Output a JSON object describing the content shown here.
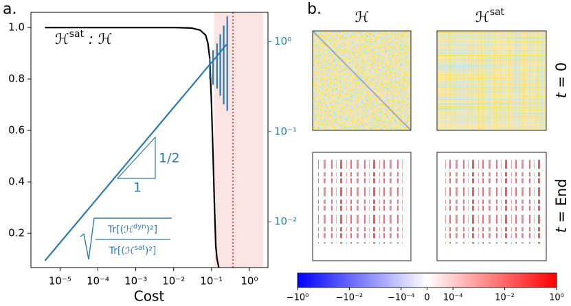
{
  "chart_data": [
    {
      "type": "line",
      "panel_label": "a.",
      "xlabel": "Cost",
      "xscale": "log",
      "xlim": [
        1.7e-06,
        3.1
      ],
      "xticks": [
        {
          "value": 1e-05,
          "label": "10⁻⁵"
        },
        {
          "value": 0.0001,
          "label": "10⁻⁴"
        },
        {
          "value": 0.001,
          "label": "10⁻³"
        },
        {
          "value": 0.01,
          "label": "10⁻²"
        },
        {
          "value": 0.1,
          "label": "10⁻¹"
        },
        {
          "value": 1,
          "label": "10⁰"
        }
      ],
      "ylim": [
        0.067,
        1.059
      ],
      "yticks": [
        0.2,
        0.4,
        0.6,
        0.8,
        {
          "value": 1,
          "label": "1.0"
        }
      ],
      "y2scale": "log",
      "y2lim": [
        0.0031,
        2.1
      ],
      "y2color": "#2a7ab0",
      "y2ticks": [
        {
          "value": 0.01,
          "label": "10⁻²"
        },
        {
          "value": 0.1,
          "label": "10⁻¹"
        },
        {
          "value": 1,
          "label": "10⁰"
        }
      ],
      "shade": [
        0.118,
        2.3
      ],
      "shade_color": "#f9e3e3",
      "vline": 0.37,
      "vline_color": "#e0474c",
      "series": [
        {
          "color": "#000000",
          "x": [
            4e-06,
            0.0001,
            0.001,
            0.01,
            0.03,
            0.05,
            0.07,
            0.08,
            0.09,
            0.1,
            0.11,
            0.12,
            0.13,
            0.14,
            0.16
          ],
          "values": [
            1,
            1,
            1,
            1,
            0.998,
            0.99,
            0.97,
            0.94,
            0.88,
            0.7,
            0.5,
            0.3,
            0.15,
            0.1,
            0.06
          ]
        },
        {
          "color": "#2a7ab0",
          "axis": "y2",
          "x": [
            4e-06,
            1e-05,
            0.0001,
            0.001,
            0.01,
            0.03,
            0.09,
            0.11,
            0.14,
            0.17,
            0.21,
            0.26
          ],
          "values": [
            0.0037,
            0.00585,
            0.0185,
            0.0585,
            0.185,
            0.32,
            0.555,
            0.61,
            0.69,
            0.76,
            0.85,
            0.94
          ],
          "lower": [
            null,
            null,
            null,
            null,
            null,
            null,
            0.38,
            0.33,
            0.3,
            0.25,
            0.2,
            0.17
          ],
          "upper": [
            null,
            null,
            null,
            null,
            null,
            null,
            0.65,
            0.8,
            0.95,
            1.2,
            1.5,
            1.9
          ]
        }
      ],
      "ratio_label": {
        "base": "ℋ",
        "sup": "sat",
        "rest": " : ℋ"
      },
      "slope": {
        "rise": "1/2",
        "run": "1"
      },
      "formula": {
        "num_a": "Tr[(ℋ",
        "num_sup": "dyn",
        "num_b": ")²]",
        "den_a": "Tr[(ℋ",
        "den_sup": "sat",
        "den_b": ")²]"
      }
    }
  ],
  "heatmaps": {
    "panel_label": "b.",
    "columns": [
      {
        "text": "ℋ"
      },
      {
        "text": "ℋ",
        "sup": "sat"
      }
    ],
    "rows": [
      {
        "var": "t",
        "rest": " = 0"
      },
      {
        "var": "t",
        "rest": " = End"
      }
    ],
    "colorbar": {
      "lim": [
        -1,
        1
      ],
      "scale": "symlog",
      "linthresh": 0.0001,
      "colors": [
        "#0000ff",
        "#ffffff",
        "#ff0000"
      ],
      "ticks": [
        {
          "value": -1,
          "label": "−10⁰"
        },
        {
          "value": -0.01,
          "label": "−10⁻²"
        },
        {
          "value": -0.0001,
          "label": "−10⁻⁴"
        },
        0,
        {
          "value": 0.0001,
          "label": "10⁻⁴"
        },
        {
          "value": 0.01,
          "label": "10⁻²"
        },
        {
          "value": 1,
          "label": "10⁰"
        }
      ]
    }
  }
}
